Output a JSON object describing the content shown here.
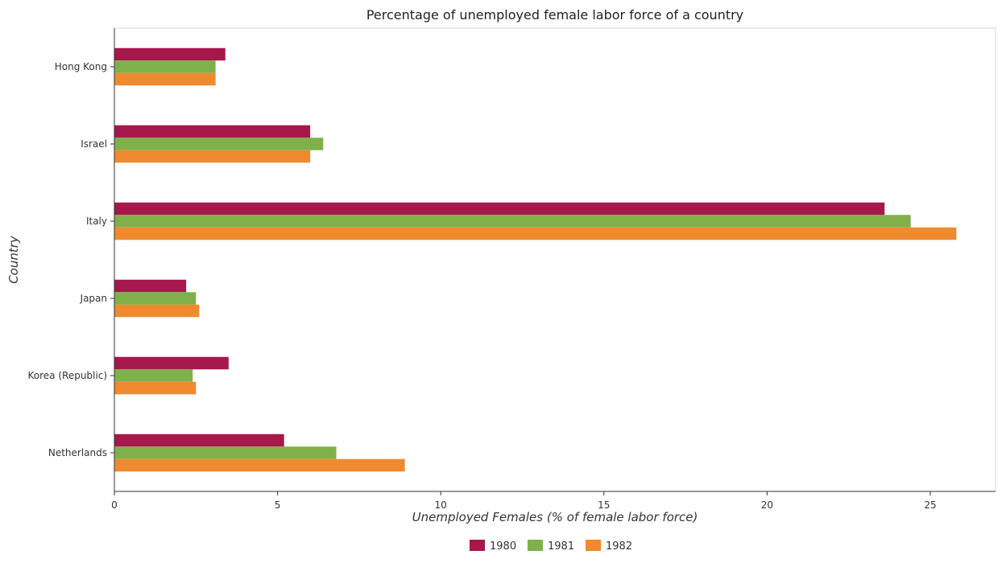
{
  "chart_data": {
    "type": "bar",
    "orientation": "horizontal",
    "title": "Percentage of unemployed female labor force of a country",
    "xlabel": "Unemployed Females (% of female labor force)",
    "ylabel": "Country",
    "categories": [
      "Hong Kong",
      "Israel",
      "Italy",
      "Japan",
      "Korea (Republic)",
      "Netherlands"
    ],
    "series": [
      {
        "name": "1980",
        "color": "#a6174c",
        "values": [
          3.4,
          6.0,
          23.6,
          2.2,
          3.5,
          5.2
        ]
      },
      {
        "name": "1981",
        "color": "#7fb04a",
        "values": [
          3.1,
          6.4,
          24.4,
          2.5,
          2.4,
          6.8
        ]
      },
      {
        "name": "1982",
        "color": "#ef8a2e",
        "values": [
          3.1,
          6.0,
          25.8,
          2.6,
          2.5,
          8.9
        ]
      }
    ],
    "xlim": [
      0,
      27
    ],
    "xticks": [
      0,
      5,
      10,
      15,
      20,
      25
    ],
    "xtick_labels": [
      "0",
      "5",
      "10",
      "15",
      "20",
      "25"
    ],
    "grid": false,
    "legend_position": "bottom-center"
  }
}
